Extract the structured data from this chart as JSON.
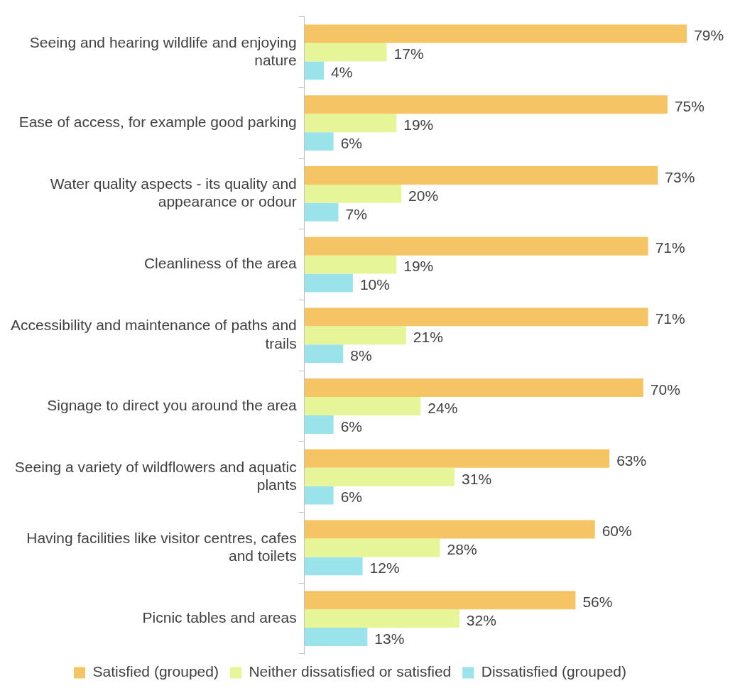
{
  "chart_data": {
    "type": "bar",
    "orientation": "horizontal",
    "categories": [
      "Seeing and hearing wildlife and enjoying nature",
      "Ease of access, for example good parking",
      "Water quality aspects - its quality and appearance or odour",
      "Cleanliness of the area",
      "Accessibility and maintenance of paths and trails",
      "Signage to direct you around the area",
      "Seeing a variety of wildflowers and aquatic plants",
      "Having facilities like visitor centres, cafes and toilets",
      "Picnic tables and areas"
    ],
    "series": [
      {
        "name": "Satisfied (grouped)",
        "color": "#f5c565",
        "values": [
          79,
          75,
          73,
          71,
          71,
          70,
          63,
          60,
          56
        ],
        "value_labels": [
          "79%",
          "75%",
          "73%",
          "71%",
          "71%",
          "70%",
          "63%",
          "60%",
          "56%"
        ]
      },
      {
        "name": "Neither dissatisfied or satisfied",
        "color": "#e6f598",
        "values": [
          17,
          19,
          20,
          19,
          21,
          24,
          31,
          28,
          32
        ],
        "value_labels": [
          "17%",
          "19%",
          "20%",
          "19%",
          "21%",
          "24%",
          "31%",
          "28%",
          "32%"
        ]
      },
      {
        "name": "Dissatisfied (grouped)",
        "color": "#9ae3ea",
        "values": [
          4,
          6,
          7,
          10,
          8,
          6,
          6,
          12,
          13
        ],
        "value_labels": [
          "4%",
          "6%",
          "7%",
          "10%",
          "8%",
          "6%",
          "6%",
          "12%",
          "13%"
        ]
      }
    ],
    "legend": "bottom",
    "tick_labels": "y"
  }
}
